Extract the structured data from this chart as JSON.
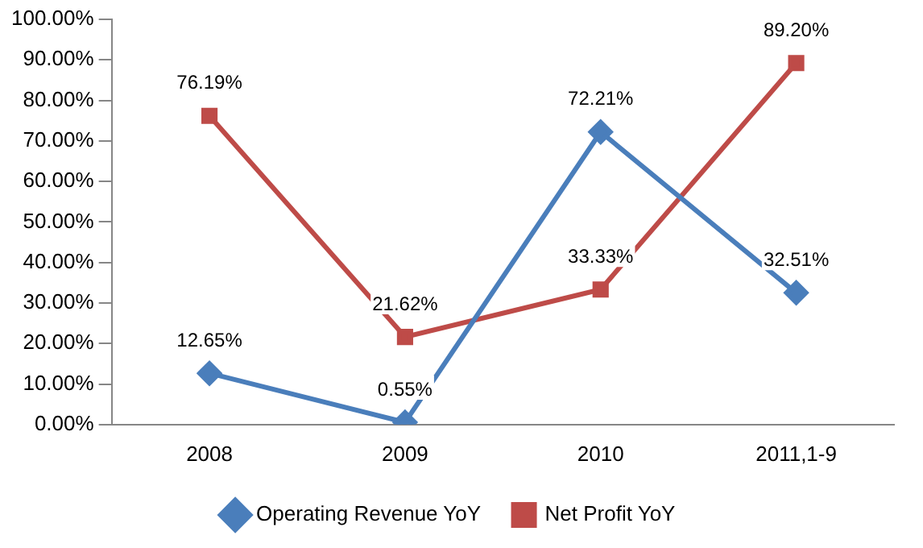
{
  "chart_data": {
    "type": "line",
    "categories": [
      "2008",
      "2009",
      "2010",
      "2011,1-9"
    ],
    "series": [
      {
        "name": "Operating Revenue YoY",
        "color": "#4a7ebb",
        "marker": "diamond",
        "values": [
          12.65,
          0.55,
          72.21,
          32.51
        ],
        "value_labels": [
          "12.65%",
          "0.55%",
          "72.21%",
          "32.51%"
        ]
      },
      {
        "name": "Net Profit YoY",
        "color": "#be4b48",
        "marker": "square",
        "values": [
          76.19,
          21.62,
          33.33,
          89.2
        ],
        "value_labels": [
          "76.19%",
          "21.62%",
          "33.33%",
          "89.20%"
        ]
      }
    ],
    "ylim": [
      0,
      100
    ],
    "yticks": [
      {
        "value": 0,
        "label": "0.00%"
      },
      {
        "value": 10,
        "label": "10.00%"
      },
      {
        "value": 20,
        "label": "20.00%"
      },
      {
        "value": 30,
        "label": "30.00%"
      },
      {
        "value": 40,
        "label": "40.00%"
      },
      {
        "value": 50,
        "label": "50.00%"
      },
      {
        "value": 60,
        "label": "60.00%"
      },
      {
        "value": 70,
        "label": "70.00%"
      },
      {
        "value": 80,
        "label": "80.00%"
      },
      {
        "value": 90,
        "label": "90.00%"
      },
      {
        "value": 100,
        "label": "100.00%"
      }
    ],
    "grid": false,
    "legend": "bottom",
    "line_style": "solid"
  }
}
